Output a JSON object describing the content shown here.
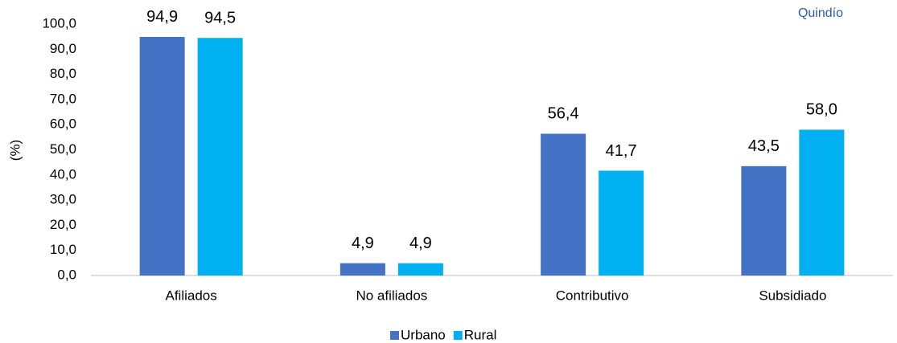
{
  "chart_data": {
    "type": "bar",
    "annotation": "Quindío",
    "y_label": "(%)",
    "categories": [
      "Afiliados",
      "No afiliados",
      "Contributivo",
      "Subsidiado"
    ],
    "series": [
      {
        "name": "Urbano",
        "color": "#4472c4",
        "values": [
          94.9,
          4.9,
          56.4,
          43.5
        ],
        "value_labels": [
          "94,9",
          "4,9",
          "56,4",
          "43,5"
        ]
      },
      {
        "name": "Rural",
        "color": "#00b0f0",
        "values": [
          94.5,
          4.9,
          41.7,
          58.0
        ],
        "value_labels": [
          "94,5",
          "4,9",
          "41,7",
          "58,0"
        ]
      }
    ],
    "ylim": [
      0,
      100
    ],
    "yticks": [
      {
        "value": 0,
        "label": "0,0"
      },
      {
        "value": 10,
        "label": "10,0"
      },
      {
        "value": 20,
        "label": "20,0"
      },
      {
        "value": 30,
        "label": "30,0"
      },
      {
        "value": 40,
        "label": "40,0"
      },
      {
        "value": 50,
        "label": "50,0"
      },
      {
        "value": 60,
        "label": "60,0"
      },
      {
        "value": 70,
        "label": "70,0"
      },
      {
        "value": 80,
        "label": "80,0"
      },
      {
        "value": 90,
        "label": "90,0"
      },
      {
        "value": 100,
        "label": "100,0"
      }
    ],
    "legend": "bottom"
  }
}
